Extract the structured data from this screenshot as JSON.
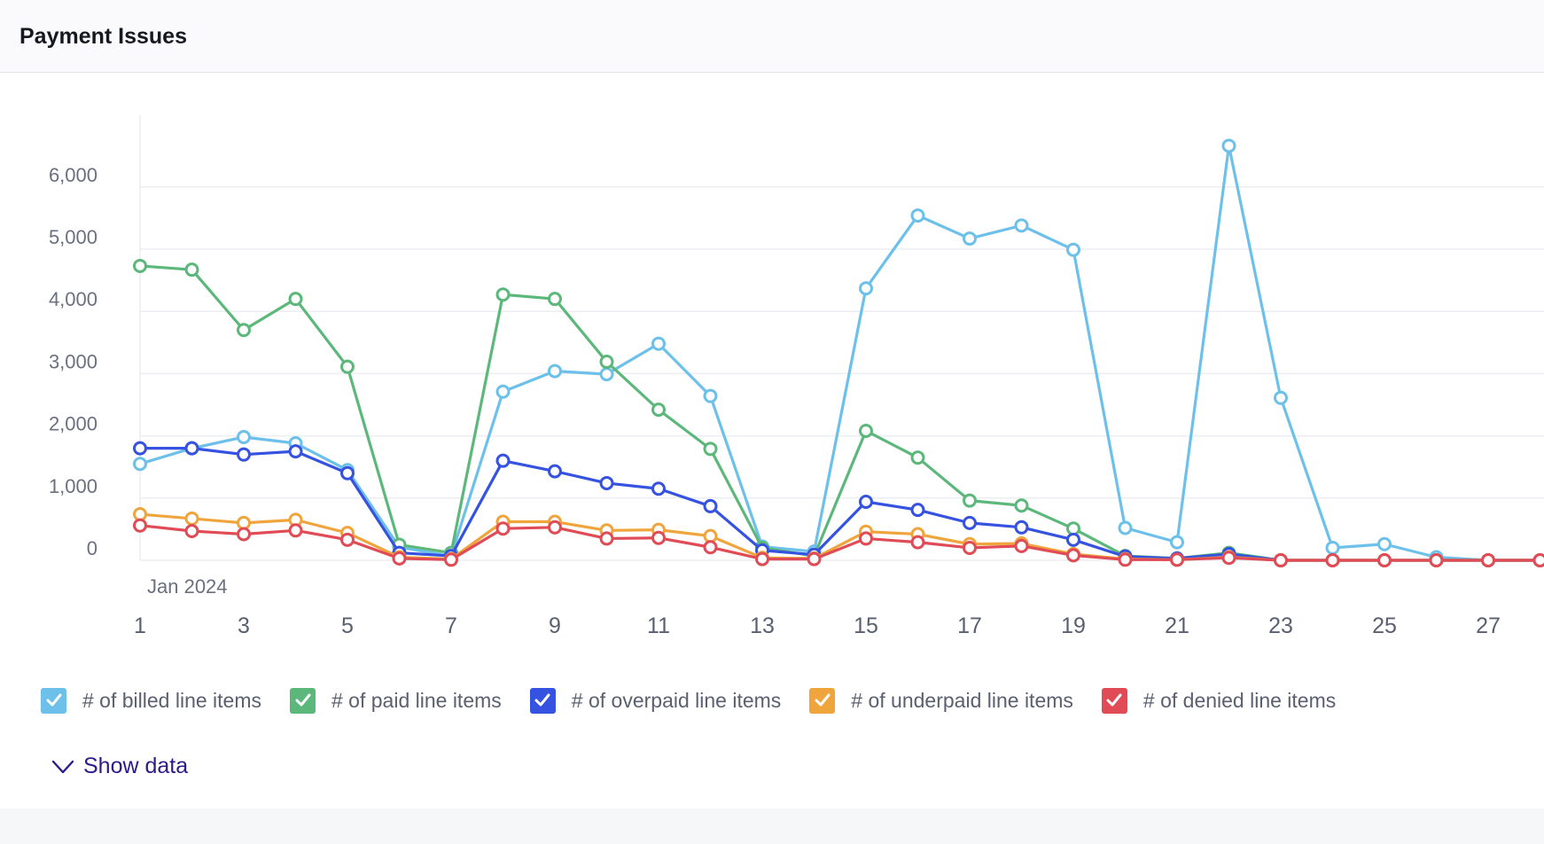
{
  "panel": {
    "title": "Payment Issues",
    "show_data_label": "Show data"
  },
  "colors": {
    "billed": "#6cc0ea",
    "paid": "#5cb87a",
    "overpaid": "#3552e0",
    "underpaid": "#f0a53c",
    "denied": "#e04b55"
  },
  "icons": {
    "legend_check": "checkmark-icon",
    "show_data": "chevron-down-icon"
  },
  "chart_data": {
    "type": "line",
    "title": "",
    "xlabel": "",
    "ylabel": "",
    "date_label": "Jan 2024",
    "x": [
      1,
      2,
      3,
      4,
      5,
      6,
      7,
      8,
      9,
      10,
      11,
      12,
      13,
      14,
      15,
      16,
      17,
      18,
      19,
      20,
      21,
      22,
      23,
      24,
      25,
      26,
      27,
      28
    ],
    "x_tick_labels": [
      "1",
      "3",
      "5",
      "7",
      "9",
      "11",
      "13",
      "15",
      "17",
      "19",
      "21",
      "23",
      "25",
      "27"
    ],
    "y_tick_labels": [
      "0",
      "1,000",
      "2,000",
      "3,000",
      "4,000",
      "5,000",
      "6,000"
    ],
    "ylim": [
      0,
      7000
    ],
    "grid": true,
    "legend_position": "bottom",
    "series": [
      {
        "key": "billed",
        "name": "# of billed line items",
        "color": "#6cc0ea",
        "values": [
          1550,
          1800,
          1980,
          1880,
          1450,
          210,
          70,
          2710,
          3040,
          2990,
          3480,
          2640,
          220,
          140,
          4370,
          5540,
          5170,
          5380,
          4990,
          520,
          290,
          6660,
          2610,
          200,
          260,
          50,
          0,
          0
        ]
      },
      {
        "key": "paid",
        "name": "# of paid line items",
        "color": "#5cb87a",
        "values": [
          4730,
          4670,
          3700,
          4200,
          3110,
          250,
          120,
          4270,
          4200,
          3190,
          2420,
          1790,
          200,
          70,
          2080,
          1650,
          960,
          880,
          510,
          70,
          30,
          120,
          0,
          0,
          0,
          0,
          0,
          0
        ]
      },
      {
        "key": "overpaid",
        "name": "# of overpaid line items",
        "color": "#3552e0",
        "values": [
          1800,
          1800,
          1700,
          1750,
          1400,
          120,
          70,
          1600,
          1430,
          1240,
          1150,
          870,
          160,
          90,
          940,
          810,
          600,
          530,
          330,
          60,
          30,
          100,
          0,
          0,
          0,
          0,
          0,
          0
        ]
      },
      {
        "key": "underpaid",
        "name": "# of underpaid line items",
        "color": "#f0a53c",
        "values": [
          740,
          670,
          600,
          650,
          440,
          50,
          20,
          620,
          620,
          480,
          490,
          390,
          40,
          30,
          460,
          420,
          260,
          270,
          100,
          20,
          10,
          50,
          0,
          0,
          0,
          0,
          0,
          0
        ]
      },
      {
        "key": "denied",
        "name": "# of denied line items",
        "color": "#e04b55",
        "values": [
          560,
          470,
          420,
          480,
          330,
          30,
          10,
          510,
          530,
          350,
          360,
          210,
          20,
          20,
          350,
          290,
          200,
          230,
          80,
          10,
          10,
          40,
          0,
          0,
          0,
          0,
          0,
          0
        ]
      }
    ]
  }
}
